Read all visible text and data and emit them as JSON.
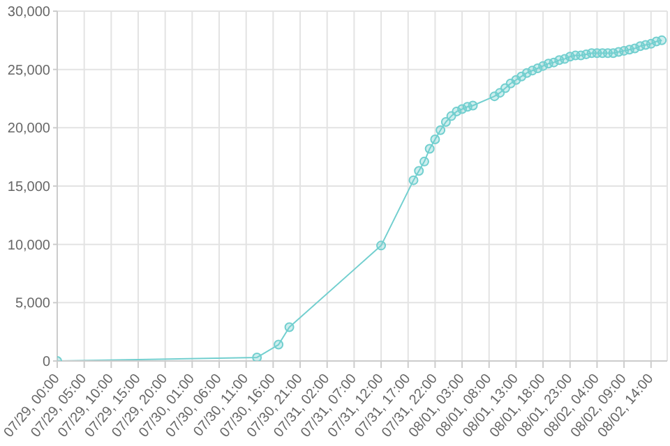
{
  "chart_data": {
    "type": "line",
    "x": [
      "--07-29T00:00",
      "--07-30T13:00",
      "--07-30T17:00",
      "--07-30T19:00",
      "--07-31T12:00",
      "--07-31T18:00",
      "--07-31T19:00",
      "--07-31T20:00",
      "--07-31T21:00",
      "--07-31T22:00",
      "--07-31T23:00",
      "--08-01T00:00",
      "--08-01T01:00",
      "--08-01T02:00",
      "--08-01T03:00",
      "--08-01T04:00",
      "--08-01T05:00",
      "--08-01T09:00",
      "--08-01T10:00",
      "--08-01T11:00",
      "--08-01T12:00",
      "--08-01T13:00",
      "--08-01T14:00",
      "--08-01T15:00",
      "--08-01T16:00",
      "--08-01T17:00",
      "--08-01T18:00",
      "--08-01T19:00",
      "--08-01T20:00",
      "--08-01T21:00",
      "--08-01T22:00",
      "--08-01T23:00",
      "--08-02T00:00",
      "--08-02T01:00",
      "--08-02T02:00",
      "--08-02T03:00",
      "--08-02T04:00",
      "--08-02T05:00",
      "--08-02T06:00",
      "--08-02T07:00",
      "--08-02T08:00",
      "--08-02T09:00",
      "--08-02T10:00",
      "--08-02T11:00",
      "--08-02T12:00",
      "--08-02T13:00",
      "--08-02T14:00",
      "--08-02T15:00",
      "--08-02T16:00"
    ],
    "series": [
      {
        "color": "#72cfcf",
        "values": [
          0,
          300,
          1400,
          2900,
          9900,
          15500,
          16300,
          17100,
          18200,
          19000,
          19800,
          20500,
          21000,
          21400,
          21600,
          21800,
          21900,
          22700,
          23000,
          23400,
          23800,
          24100,
          24400,
          24700,
          24900,
          25100,
          25300,
          25500,
          25600,
          25800,
          25900,
          26100,
          26200,
          26200,
          26300,
          26400,
          26400,
          26400,
          26400,
          26400,
          26500,
          26600,
          26700,
          26800,
          27000,
          27100,
          27200,
          27400,
          27500
        ]
      }
    ],
    "xlim": [
      "--07-29T00:00",
      "--08-02T17:00"
    ],
    "xticks": [
      {
        "value": "--07-29T00:00",
        "label": "07/29, 00:00"
      },
      {
        "value": "--07-29T05:00",
        "label": "07/29, 05:00"
      },
      {
        "value": "--07-29T10:00",
        "label": "07/29, 10:00"
      },
      {
        "value": "--07-29T15:00",
        "label": "07/29, 15:00"
      },
      {
        "value": "--07-29T20:00",
        "label": "07/29, 20:00"
      },
      {
        "value": "--07-30T01:00",
        "label": "07/30, 01:00"
      },
      {
        "value": "--07-30T06:00",
        "label": "07/30, 06:00"
      },
      {
        "value": "--07-30T11:00",
        "label": "07/30, 11:00"
      },
      {
        "value": "--07-30T16:00",
        "label": "07/30, 16:00"
      },
      {
        "value": "--07-30T21:00",
        "label": "07/30, 21:00"
      },
      {
        "value": "--07-31T02:00",
        "label": "07/31, 02:00"
      },
      {
        "value": "--07-31T07:00",
        "label": "07/31, 07:00"
      },
      {
        "value": "--07-31T12:00",
        "label": "07/31, 12:00"
      },
      {
        "value": "--07-31T17:00",
        "label": "07/31, 17:00"
      },
      {
        "value": "--07-31T22:00",
        "label": "07/31, 22:00"
      },
      {
        "value": "--08-01T03:00",
        "label": "08/01, 03:00"
      },
      {
        "value": "--08-01T08:00",
        "label": "08/01, 08:00"
      },
      {
        "value": "--08-01T13:00",
        "label": "08/01, 13:00"
      },
      {
        "value": "--08-01T18:00",
        "label": "08/01, 18:00"
      },
      {
        "value": "--08-01T23:00",
        "label": "08/01, 23:00"
      },
      {
        "value": "--08-02T04:00",
        "label": "08/02, 04:00"
      },
      {
        "value": "--08-02T09:00",
        "label": "08/02, 09:00"
      },
      {
        "value": "--08-02T14:00",
        "label": "08/02, 14:00"
      }
    ],
    "ylim": [
      0,
      30000
    ],
    "yticks": [
      {
        "value": 0,
        "label": "0"
      },
      {
        "value": 5000,
        "label": "5,000"
      },
      {
        "value": 10000,
        "label": "10,000"
      },
      {
        "value": 15000,
        "label": "15,000"
      },
      {
        "value": 20000,
        "label": "20,000"
      },
      {
        "value": 25000,
        "label": "25,000"
      },
      {
        "value": 30000,
        "label": "30,000"
      }
    ],
    "grid": true,
    "marker": "circle",
    "line_style": "solid"
  }
}
